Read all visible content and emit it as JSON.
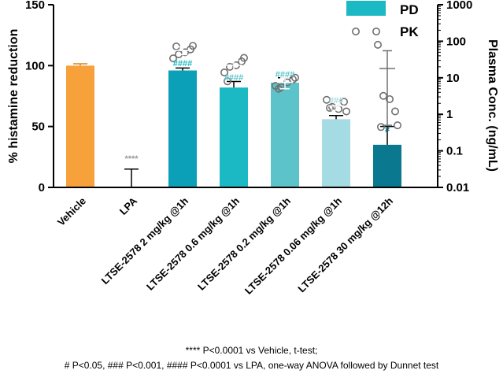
{
  "chart_data": {
    "type": "bar",
    "categories": [
      "Vehicle",
      "LPA",
      "LTSE-2578 2 mg/kg @1h",
      "LTSE-2578 0.6 mg/kg @1h",
      "LTSE-2578 0.2 mg/kg @1h",
      "LTSE-2578 0.06 mg/kg @1h",
      "LTSE-2578 30 mg/kg @12h"
    ],
    "series": [
      {
        "name": "PD",
        "axis": "left",
        "values": [
          100,
          0,
          96,
          82,
          86,
          56,
          35
        ],
        "error": [
          1.5,
          15,
          2,
          5,
          4,
          3,
          15
        ],
        "colors": [
          "#f7a13b",
          "#ffffff",
          "#0b9fb8",
          "#1ab9c3",
          "#5cc3cb",
          "#a5dbe3",
          "#0a788e"
        ]
      },
      {
        "name": "PK",
        "axis": "right",
        "type": "scatter",
        "points": [
          [],
          [],
          [
            34,
            44,
            50,
            60,
            75,
            72
          ],
          [
            14,
            20,
            22,
            28,
            35,
            8
          ],
          [
            6,
            5.5,
            7.5,
            9,
            10,
            5
          ],
          [
            2.5,
            1.6,
            1.4,
            2.2,
            1.2,
            1.5
          ],
          [
            80,
            3.2,
            2.6,
            1.2,
            0.5,
            0.45
          ]
        ],
        "mean": [
          null,
          null,
          56,
          22,
          7.5,
          1.7,
          18
        ],
        "error_low": [
          null,
          null,
          43,
          14,
          5,
          1.3,
          0.5
        ],
        "error_high": [
          null,
          null,
          70,
          30,
          10,
          2.2,
          55
        ]
      }
    ],
    "significance": [
      "",
      "****",
      "####",
      "####",
      "####",
      "###",
      "#"
    ],
    "significance_colors": [
      "",
      "#9a9a9a",
      "#1ab9c3",
      "#5cc3cb",
      "#5cc3cb",
      "#a5dbe3",
      "#0a788e"
    ],
    "ylabel": "% histamine reduction",
    "ylim": [
      0,
      150
    ],
    "yticks": [
      "0",
      "50",
      "100",
      "150"
    ],
    "y2label": "Plasma Conc. (ng/mL)",
    "y2scale": "log",
    "y2lim": [
      0.01,
      1000
    ],
    "y2ticks": [
      "0.01",
      "0.1",
      "1",
      "10",
      "100",
      "1000"
    ],
    "legend": {
      "position": "top-right",
      "entries": [
        "PD",
        "PK"
      ]
    }
  },
  "footnotes": {
    "line1": "**** P<0.0001 vs Vehicle, t-test;",
    "line2": "# P<0.05, ### P<0.001, #### P<0.0001 vs LPA, one-way ANOVA followed by Dunnet test"
  }
}
